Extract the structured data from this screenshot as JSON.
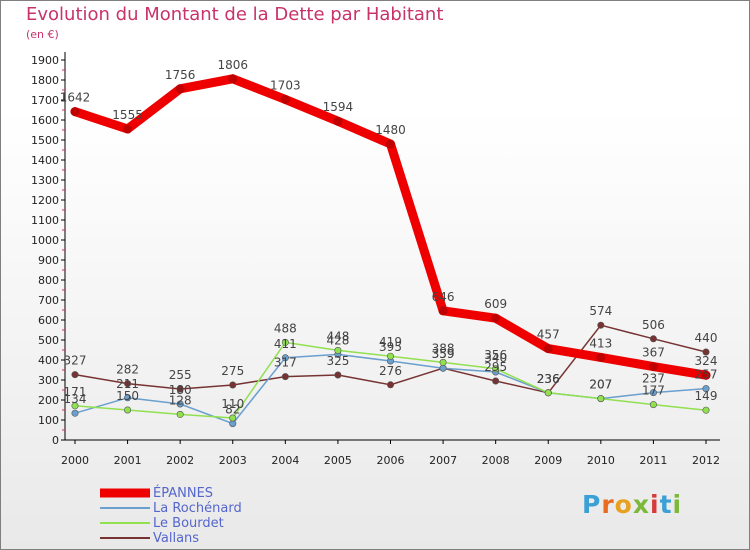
{
  "header": {
    "title": "Evolution du Montant de la Dette par Habitant",
    "subtitle": "(en €)"
  },
  "logo": {
    "text": "Proxiti",
    "letter_colors": [
      "#3aa0d6",
      "#e86b1f",
      "#e8a01f",
      "#7cb83a",
      "#d63a3a",
      "#3aa0d6",
      "#7cb83a"
    ]
  },
  "chart_data": {
    "type": "line",
    "title": "Evolution du Montant de la Dette par Habitant",
    "subtitle": "(en €)",
    "x": [
      "2000",
      "2001",
      "2002",
      "2003",
      "2004",
      "2005",
      "2006",
      "2007",
      "2008",
      "2009",
      "2010",
      "2011",
      "2012"
    ],
    "yticks": [
      0,
      100,
      200,
      300,
      400,
      500,
      600,
      700,
      800,
      900,
      1000,
      1100,
      1200,
      1300,
      1400,
      1500,
      1600,
      1700,
      1800,
      1900
    ],
    "ylim": [
      0,
      1900
    ],
    "grid": false,
    "legend_position": "bottom-left",
    "series": [
      {
        "name": "ÉPANNES",
        "color": "#ee0000",
        "values": [
          1642,
          1555,
          1756,
          1806,
          1703,
          1594,
          1480,
          646,
          609,
          457,
          413,
          367,
          324
        ],
        "labels": [
          "1642",
          "1555",
          "1756",
          "1806",
          "1703",
          "1594",
          "1480",
          "646",
          "609",
          "457",
          "413",
          "367",
          "324"
        ]
      },
      {
        "name": "La Rochénard",
        "color": "#6a9fce",
        "values": [
          134,
          211,
          180,
          82,
          411,
          428,
          395,
          359,
          340,
          236,
          207,
          237,
          257
        ],
        "labels": [
          "134",
          "211",
          "180",
          "82",
          "411",
          "428",
          "395",
          "359",
          "340",
          "236",
          "207",
          "237",
          "257"
        ]
      },
      {
        "name": "Le Bourdet",
        "color": "#90e050",
        "values": [
          171,
          150,
          128,
          110,
          488,
          448,
          419,
          388,
          356,
          236,
          207,
          177,
          149
        ],
        "labels": [
          "171",
          "150",
          "128",
          "110",
          "488",
          "448",
          "419",
          "388",
          "356",
          "236",
          "207",
          "177",
          "149"
        ]
      },
      {
        "name": "Vallans",
        "color": "#773333",
        "values": [
          327,
          282,
          255,
          275,
          317,
          325,
          276,
          359,
          295,
          236,
          574,
          506,
          440
        ],
        "labels": [
          "327",
          "282",
          "255",
          "275",
          "317",
          "325",
          "276",
          "359",
          "295",
          "236",
          "574",
          "506",
          "440"
        ]
      }
    ]
  }
}
